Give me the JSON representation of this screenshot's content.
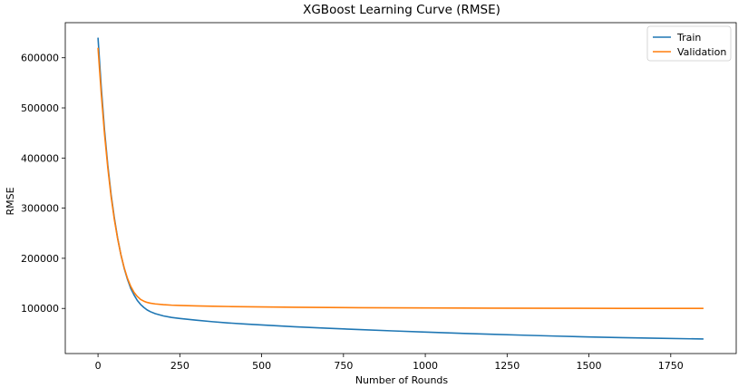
{
  "chart_data": {
    "type": "line",
    "title": "XGBoost Learning Curve (RMSE)",
    "xlabel": "Number of Rounds",
    "ylabel": "RMSE",
    "xlim": [
      -100,
      1950
    ],
    "ylim": [
      10000,
      670000
    ],
    "xticks": [
      0,
      250,
      500,
      750,
      1000,
      1250,
      1500,
      1750
    ],
    "yticks": [
      100000,
      200000,
      300000,
      400000,
      500000,
      600000
    ],
    "grid": false,
    "legend_position": "top-right",
    "series": [
      {
        "name": "Train",
        "color": "#1f77b4",
        "x": [
          0,
          10,
          20,
          30,
          40,
          50,
          60,
          70,
          80,
          90,
          100,
          110,
          120,
          130,
          140,
          150,
          160,
          175,
          200,
          225,
          250,
          300,
          350,
          400,
          450,
          500,
          600,
          700,
          800,
          900,
          1000,
          1100,
          1200,
          1300,
          1400,
          1500,
          1600,
          1700,
          1850
        ],
        "values": [
          640000,
          540000,
          455000,
          385000,
          327000,
          280000,
          240000,
          207000,
          180000,
          158000,
          140000,
          127000,
          116000,
          108000,
          102000,
          97000,
          93500,
          89500,
          85000,
          82000,
          80000,
          76500,
          73500,
          71000,
          68800,
          67000,
          63500,
          60500,
          57800,
          55200,
          52800,
          50600,
          48500,
          46600,
          44800,
          43200,
          41800,
          40600,
          39000
        ]
      },
      {
        "name": "Validation",
        "color": "#ff7f0e",
        "x": [
          0,
          10,
          20,
          30,
          40,
          50,
          60,
          70,
          80,
          90,
          100,
          110,
          120,
          130,
          140,
          150,
          160,
          175,
          200,
          225,
          250,
          300,
          350,
          400,
          500,
          600,
          800,
          1000,
          1200,
          1400,
          1600,
          1850
        ],
        "values": [
          620000,
          528000,
          447000,
          380000,
          323000,
          277000,
          239000,
          207000,
          181000,
          160000,
          144000,
          132000,
          124000,
          118000,
          114500,
          112000,
          110500,
          109000,
          107500,
          106500,
          106000,
          105000,
          104300,
          103800,
          103000,
          102300,
          101500,
          101000,
          100600,
          100300,
          100100,
          100000
        ]
      }
    ]
  }
}
